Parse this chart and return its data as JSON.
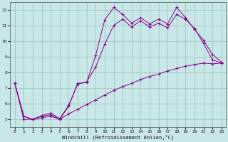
{
  "background_color": "#c8e8e8",
  "grid_color": "#99bbbb",
  "line_color": "#880088",
  "xlabel": "Windchill (Refroidissement éolien,°C)",
  "xlim": [
    -0.5,
    23.5
  ],
  "ylim": [
    4.5,
    12.5
  ],
  "yticks": [
    5,
    6,
    7,
    8,
    9,
    10,
    11,
    12
  ],
  "xticks": [
    0,
    1,
    2,
    3,
    4,
    5,
    6,
    7,
    8,
    9,
    10,
    11,
    12,
    13,
    14,
    15,
    16,
    17,
    18,
    19,
    20,
    21,
    22,
    23
  ],
  "s1x": [
    0,
    1,
    2,
    3,
    4,
    5,
    6,
    7,
    8,
    9,
    10,
    11,
    12,
    13,
    14,
    15,
    16,
    17,
    18,
    19,
    20,
    21,
    22,
    23
  ],
  "s1y": [
    7.3,
    5.2,
    5.0,
    5.2,
    5.3,
    5.0,
    5.85,
    7.3,
    7.35,
    9.1,
    11.35,
    12.15,
    11.7,
    11.15,
    11.5,
    11.1,
    11.4,
    11.1,
    12.15,
    11.5,
    10.75,
    10.05,
    9.15,
    8.65
  ],
  "s2x": [
    0,
    1,
    2,
    3,
    4,
    5,
    6,
    7,
    8,
    9,
    10,
    11,
    12,
    13,
    14,
    15,
    16,
    17,
    18,
    19,
    20,
    21,
    22,
    23
  ],
  "s2y": [
    7.3,
    5.2,
    5.0,
    5.25,
    5.4,
    5.05,
    5.9,
    7.25,
    7.4,
    8.35,
    9.8,
    11.0,
    11.4,
    10.9,
    11.3,
    10.9,
    11.15,
    10.85,
    11.7,
    11.4,
    10.8,
    9.85,
    8.8,
    8.6
  ],
  "s3x": [
    0,
    1,
    2,
    3,
    4,
    5,
    6,
    7,
    8,
    9,
    10,
    11,
    12,
    13,
    14,
    15,
    16,
    17,
    18,
    19,
    20,
    21,
    22,
    23
  ],
  "s3y": [
    7.3,
    5.0,
    5.0,
    5.1,
    5.2,
    5.0,
    5.35,
    5.65,
    5.95,
    6.25,
    6.55,
    6.85,
    7.1,
    7.3,
    7.55,
    7.75,
    7.9,
    8.1,
    8.25,
    8.4,
    8.5,
    8.6,
    8.55,
    8.6
  ]
}
